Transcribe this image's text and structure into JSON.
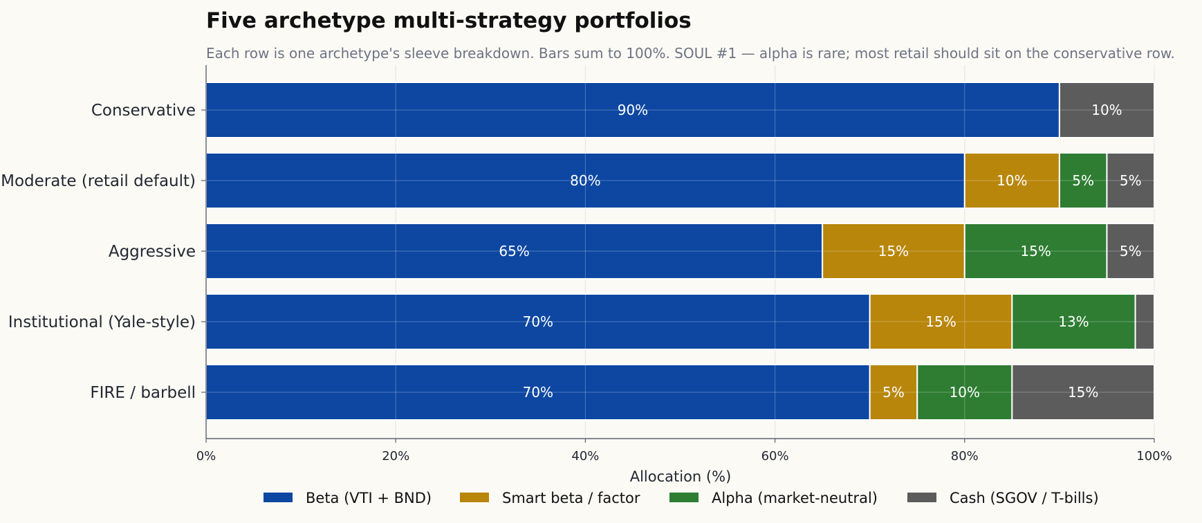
{
  "chart_data": {
    "type": "bar",
    "orientation": "horizontal",
    "stacked": true,
    "title": "Five archetype multi-strategy portfolios",
    "subtitle": "Each row is one archetype's sleeve breakdown. Bars sum to 100%. SOUL #1 — alpha is rare; most retail should sit on the conservative row.",
    "xlabel": "Allocation (%)",
    "ylabel": "",
    "xlim": [
      0,
      100
    ],
    "x_ticks": [
      0,
      20,
      40,
      60,
      80,
      100
    ],
    "x_tick_labels": [
      "0%",
      "20%",
      "40%",
      "60%",
      "80%",
      "100%"
    ],
    "grid": true,
    "legend_position": "bottom-center",
    "categories": [
      "Conservative",
      "Moderate (retail default)",
      "Aggressive",
      "Institutional (Yale-style)",
      "FIRE / barbell"
    ],
    "series": [
      {
        "name": "Beta (VTI + BND)",
        "color": "#0d47a1",
        "values": [
          90,
          80,
          65,
          70,
          70
        ],
        "labels": [
          "90%",
          "80%",
          "65%",
          "70%",
          "70%"
        ]
      },
      {
        "name": "Smart beta / factor",
        "color": "#b8860b",
        "values": [
          0,
          10,
          15,
          15,
          5
        ],
        "labels": [
          "",
          "10%",
          "15%",
          "15%",
          "5%"
        ]
      },
      {
        "name": "Alpha (market-neutral)",
        "color": "#2e7d32",
        "values": [
          0,
          5,
          15,
          13,
          10
        ],
        "labels": [
          "",
          "5%",
          "15%",
          "13%",
          "10%"
        ]
      },
      {
        "name": "Cash (SGOV / T-bills)",
        "color": "#5c5c5c",
        "values": [
          10,
          5,
          5,
          2,
          15
        ],
        "labels": [
          "10%",
          "5%",
          "5%",
          "",
          "15%"
        ]
      }
    ]
  }
}
